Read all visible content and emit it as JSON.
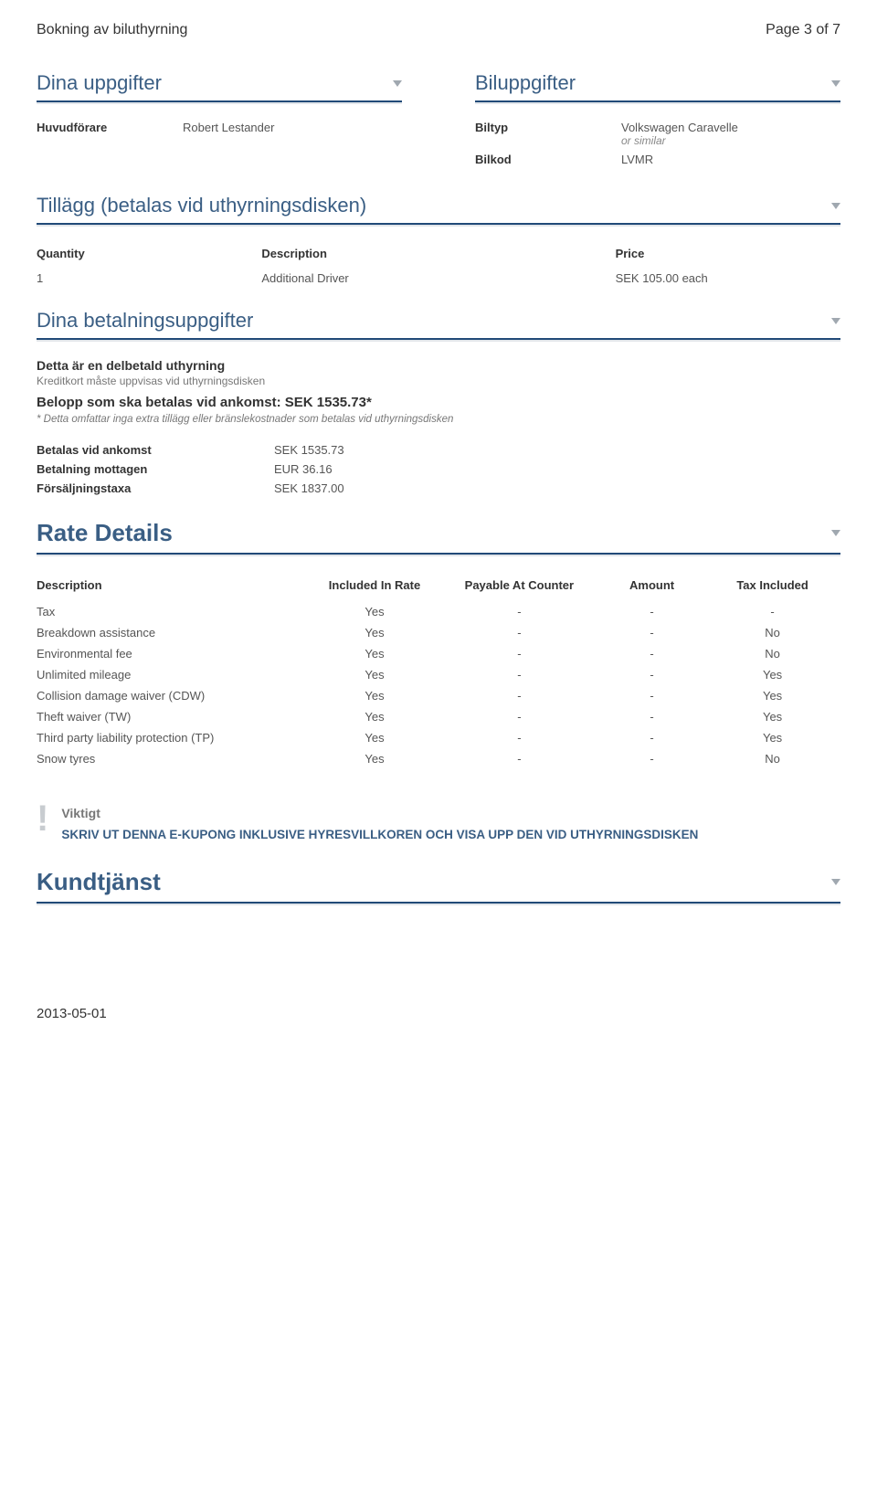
{
  "header": {
    "left": "Bokning av biluthyrning",
    "right": "Page 3 of 7"
  },
  "personal": {
    "title": "Dina uppgifter",
    "driver_label": "Huvudförare",
    "driver_value": "Robert Lestander"
  },
  "car": {
    "title": "Biluppgifter",
    "type_label": "Biltyp",
    "type_value": "Volkswagen Caravelle",
    "type_sub": "or similar",
    "code_label": "Bilkod",
    "code_value": "LVMR"
  },
  "extras": {
    "title": "Tillägg (betalas vid uthyrningsdisken)",
    "cols": {
      "qty": "Quantity",
      "desc": "Description",
      "price": "Price"
    },
    "rows": [
      {
        "qty": "1",
        "desc": "Additional Driver",
        "price": "SEK 105.00 each"
      }
    ]
  },
  "payment": {
    "title": "Dina betalningsuppgifter",
    "headline": "Detta är en delbetald uthyrning",
    "sub": "Kreditkort måste uppvisas vid uthyrningsdisken",
    "amount_line": "Belopp som ska betalas vid ankomst: SEK 1535.73*",
    "note": "* Detta omfattar inga extra tillägg eller bränslekostnader som betalas vid uthyrningsdisken",
    "rows": [
      {
        "label": "Betalas vid ankomst",
        "value": "SEK 1535.73"
      },
      {
        "label": "Betalning mottagen",
        "value": "EUR 36.16"
      },
      {
        "label": "Försäljningstaxa",
        "value": "SEK 1837.00"
      }
    ]
  },
  "rate": {
    "title": "Rate Details",
    "cols": {
      "desc": "Description",
      "inc": "Included In Rate",
      "pay": "Payable At Counter",
      "amt": "Amount",
      "tax": "Tax Included"
    },
    "rows": [
      {
        "desc": "Tax",
        "inc": "Yes",
        "pay": "-",
        "amt": "-",
        "tax": "-"
      },
      {
        "desc": "Breakdown assistance",
        "inc": "Yes",
        "pay": "-",
        "amt": "-",
        "tax": "No"
      },
      {
        "desc": "Environmental fee",
        "inc": "Yes",
        "pay": "-",
        "amt": "-",
        "tax": "No"
      },
      {
        "desc": "Unlimited mileage",
        "inc": "Yes",
        "pay": "-",
        "amt": "-",
        "tax": "Yes"
      },
      {
        "desc": "Collision damage waiver (CDW)",
        "inc": "Yes",
        "pay": "-",
        "amt": "-",
        "tax": "Yes"
      },
      {
        "desc": "Theft waiver (TW)",
        "inc": "Yes",
        "pay": "-",
        "amt": "-",
        "tax": "Yes"
      },
      {
        "desc": "Third party liability protection (TP)",
        "inc": "Yes",
        "pay": "-",
        "amt": "-",
        "tax": "Yes"
      },
      {
        "desc": "Snow tyres",
        "inc": "Yes",
        "pay": "-",
        "amt": "-",
        "tax": "No"
      }
    ]
  },
  "notice": {
    "title": "Viktigt",
    "text": "SKRIV UT DENNA E-KUPONG INKLUSIVE HYRESVILLKOREN OCH VISA UPP DEN VID UTHYRNINGSDISKEN"
  },
  "support": {
    "title": "Kundtjänst"
  },
  "footer": {
    "date": "2013-05-01"
  }
}
